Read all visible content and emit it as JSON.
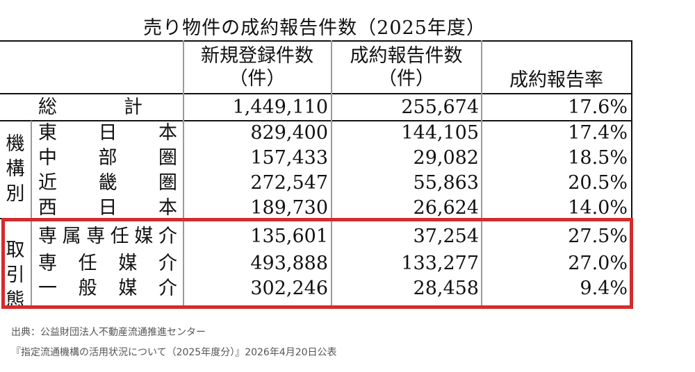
{
  "title": "売り物件の成約報告件数（2025年度）",
  "columns": {
    "new_listings": [
      "新規登録件数",
      "（件）"
    ],
    "contracts": [
      "成約報告件数",
      "（件）"
    ],
    "rate": "成約報告率"
  },
  "total_row": {
    "label": [
      "総",
      "計"
    ],
    "new_listings": "1,449,110",
    "contracts": "255,674",
    "rate": "17.6%"
  },
  "by_organization": {
    "group_label": [
      "機",
      "構",
      "別"
    ],
    "rows": [
      {
        "label": [
          "東",
          "日",
          "本"
        ],
        "new_listings": "829,400",
        "contracts": "144,105",
        "rate": "17.4%"
      },
      {
        "label": [
          "中",
          "部",
          "圏"
        ],
        "new_listings": "157,433",
        "contracts": "29,082",
        "rate": "18.5%"
      },
      {
        "label": [
          "近",
          "畿",
          "圏"
        ],
        "new_listings": "272,547",
        "contracts": "55,863",
        "rate": "20.5%"
      },
      {
        "label": [
          "西",
          "日",
          "本"
        ],
        "new_listings": "189,730",
        "contracts": "26,624",
        "rate": "14.0%"
      }
    ]
  },
  "by_transaction": {
    "group_label": [
      "取",
      "引",
      "態"
    ],
    "rows": [
      {
        "label": [
          "専",
          "属",
          "専",
          "任",
          "媒",
          "介"
        ],
        "new_listings": "135,601",
        "contracts": "37,254",
        "rate": "27.5%"
      },
      {
        "label": [
          "専",
          "任",
          "媒",
          "介"
        ],
        "new_listings": "493,888",
        "contracts": "133,277",
        "rate": "27.0%"
      },
      {
        "label": [
          "一",
          "般",
          "媒",
          "介"
        ],
        "new_listings": "302,246",
        "contracts": "28,458",
        "rate": "9.4%"
      }
    ]
  },
  "highlight_color": "#d42b2b",
  "footer": {
    "source": "出典：公益財団法人不動産流通推進センター",
    "publication": "『指定流通機構の活用状況について（2025年度分）』2026年4月20日公表"
  }
}
